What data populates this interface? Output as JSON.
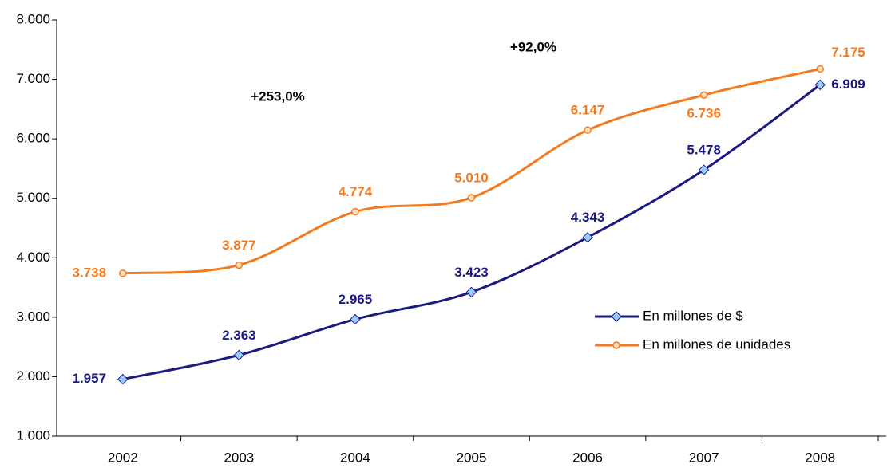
{
  "chart_data": {
    "type": "line",
    "categories": [
      "2002",
      "2003",
      "2004",
      "2005",
      "2006",
      "2007",
      "2008"
    ],
    "series": [
      {
        "name": "En millones de $",
        "color": "#1a1a80",
        "marker_color": "#99ccff",
        "values": [
          1957,
          2363,
          2965,
          3423,
          4343,
          5478,
          6909
        ],
        "value_labels": [
          "1.957",
          "2.363",
          "2.965",
          "3.423",
          "4.343",
          "5.478",
          "6.909"
        ]
      },
      {
        "name": "En millones de unidades",
        "color": "#f47a20",
        "marker_color": "#fde0c0",
        "values": [
          3738,
          3877,
          4774,
          5010,
          6147,
          6736,
          7175
        ],
        "value_labels": [
          "3.738",
          "3.877",
          "4.774",
          "5.010",
          "6.147",
          "6.736",
          "7.175"
        ]
      }
    ],
    "annotations": [
      "+253,0%",
      "+92,0%"
    ],
    "ylim": [
      1000,
      8000
    ],
    "yticks": [
      {
        "value": 1000,
        "label": "1.000"
      },
      {
        "value": 2000,
        "label": "2.000"
      },
      {
        "value": 3000,
        "label": "3.000"
      },
      {
        "value": 4000,
        "label": "4.000"
      },
      {
        "value": 5000,
        "label": "5.000"
      },
      {
        "value": 6000,
        "label": "6.000"
      },
      {
        "value": 7000,
        "label": "7.000"
      },
      {
        "value": 8000,
        "label": "8.000"
      }
    ],
    "grid": false,
    "legend": "right"
  }
}
